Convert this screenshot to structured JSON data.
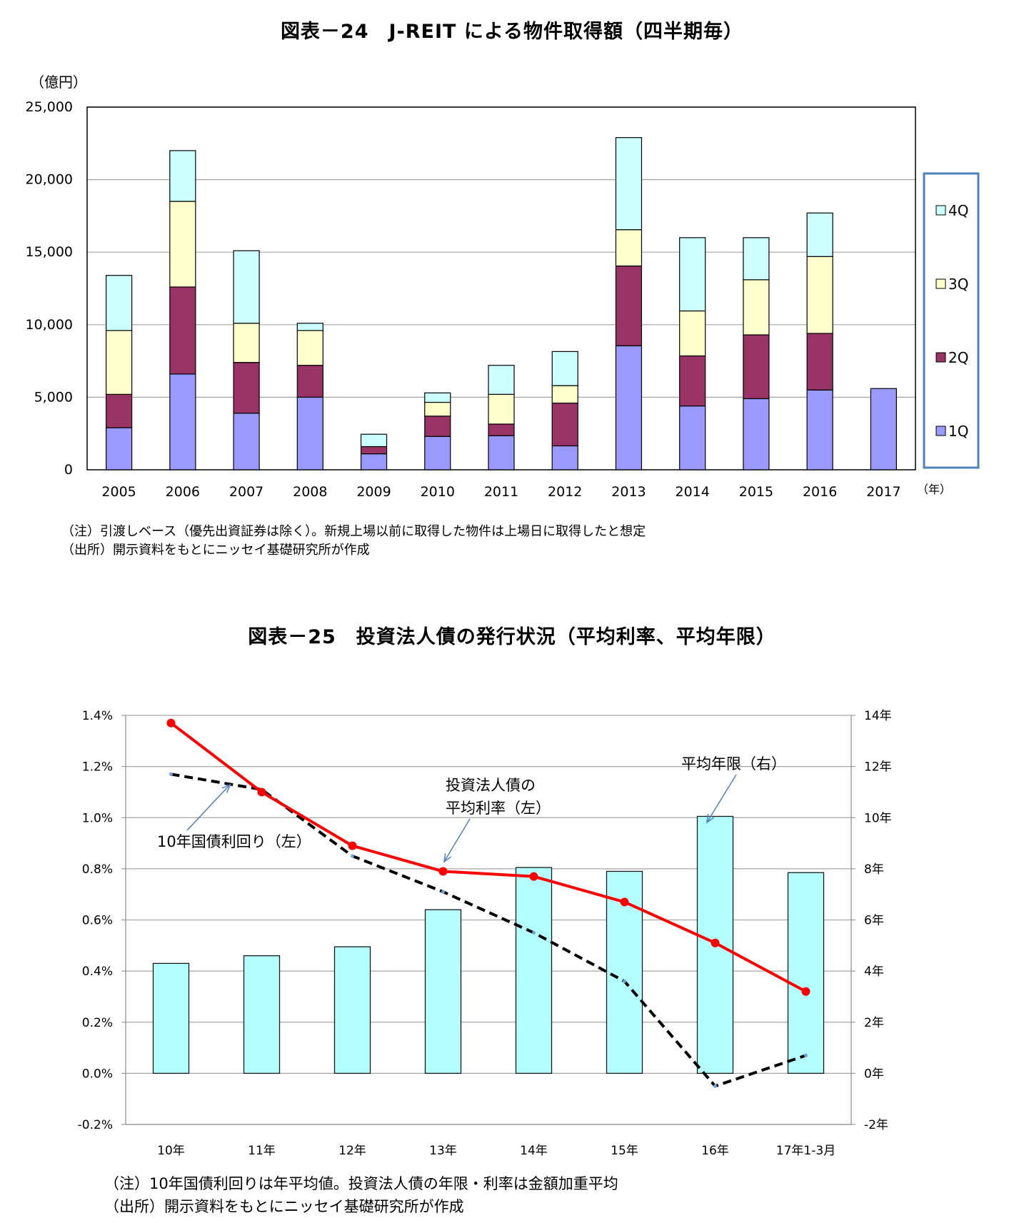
{
  "chart1": {
    "title": "図表－24　J-REIT による物件取得額（四半期毎）",
    "unit_label": "（億円）",
    "xunit_label": "（年）",
    "note1": "（注）引渡しベース（優先出資証券は除く）。新規上場以前に取得した物件は上場日に取得したと想定",
    "note2": "（出所）開示資料をもとにニッセイ基礎研究所が作成",
    "colors": {
      "1Q": "#9999ff",
      "2Q": "#993366",
      "3Q": "#ffffcc",
      "4Q": "#ccffff",
      "legend_border": "#4f81bd"
    }
  },
  "chart2": {
    "title": "図表－25　投資法人債の発行状況（平均利率、平均年限）",
    "annotation_jgb": "10年国債利回り（左）",
    "annotation_rate_1": "投資法人債の",
    "annotation_rate_2": "平均利率（左）",
    "annotation_years": "平均年限（右）",
    "note1": "（注）10年国債利回りは年平均値。投資法人債の年限・利率は金額加重平均",
    "note2": "（出所）開示資料をもとにニッセイ基礎研究所が作成",
    "colors": {
      "bars": "#b3ffff",
      "rate_line": "#ff0000",
      "jgb_line": "#000000"
    }
  },
  "chart_data": [
    {
      "type": "bar",
      "stacked": true,
      "categories": [
        "2005",
        "2006",
        "2007",
        "2008",
        "2009",
        "2010",
        "2011",
        "2012",
        "2013",
        "2014",
        "2015",
        "2016",
        "2017"
      ],
      "series": [
        {
          "name": "1Q",
          "values": [
            2900,
            6600,
            3900,
            5000,
            1100,
            2300,
            2350,
            1650,
            8550,
            4400,
            4900,
            5500,
            5600
          ]
        },
        {
          "name": "2Q",
          "values": [
            2300,
            6000,
            3500,
            2200,
            500,
            1400,
            800,
            2950,
            5500,
            3450,
            4400,
            3900,
            0
          ]
        },
        {
          "name": "3Q",
          "values": [
            4400,
            5900,
            2700,
            2400,
            0,
            950,
            2050,
            1200,
            2500,
            3100,
            3800,
            5300,
            0
          ]
        },
        {
          "name": "4Q",
          "values": [
            3800,
            3500,
            5000,
            500,
            850,
            650,
            2000,
            2350,
            6350,
            5050,
            2900,
            3000,
            0
          ]
        }
      ],
      "ylim": [
        0,
        25000
      ],
      "yticks": [
        "0",
        "5,000",
        "10,000",
        "15,000",
        "20,000",
        "25,000"
      ],
      "legend_position": "right",
      "grid": true
    },
    {
      "type": "bar+line",
      "categories": [
        "10年",
        "11年",
        "12年",
        "13年",
        "14年",
        "15年",
        "16年",
        "17年1-3月"
      ],
      "bars": {
        "axis": "right",
        "values": [
          4.3,
          4.6,
          4.95,
          6.4,
          8.05,
          7.9,
          10.05,
          7.85
        ]
      },
      "lines": [
        {
          "axis": "left",
          "style": "solid",
          "values": [
            1.37,
            1.1,
            0.89,
            0.79,
            0.77,
            0.67,
            0.51,
            0.32
          ]
        },
        {
          "axis": "left",
          "style": "dashed",
          "values": [
            1.17,
            1.11,
            0.85,
            0.71,
            0.55,
            0.36,
            -0.05,
            0.07
          ]
        }
      ],
      "y_left": {
        "range": [
          -0.2,
          1.4
        ],
        "ticks": [
          "-0.2%",
          "0.0%",
          "0.2%",
          "0.4%",
          "0.6%",
          "0.8%",
          "1.0%",
          "1.2%",
          "1.4%"
        ]
      },
      "y_right": {
        "range": [
          -2,
          14
        ],
        "ticks": [
          "-2年",
          "0年",
          "2年",
          "4年",
          "6年",
          "8年",
          "10年",
          "12年",
          "14年"
        ]
      },
      "grid": true
    }
  ]
}
